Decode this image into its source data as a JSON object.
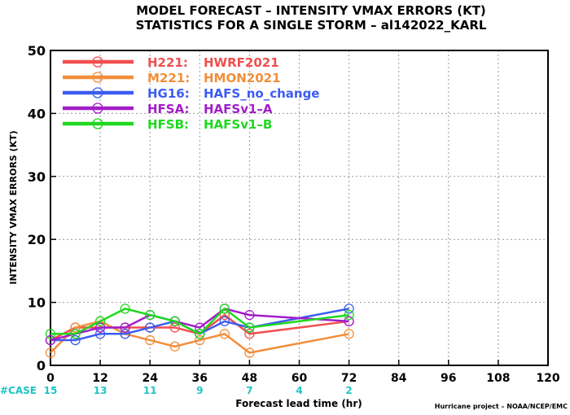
{
  "chart_data": {
    "type": "line",
    "title": "MODEL FORECAST – INTENSITY VMAX ERRORS (KT)",
    "subtitle": "STATISTICS FOR A SINGLE STORM – al142022_KARL",
    "xlabel": "Forecast lead time (hr)",
    "ylabel": "INTENSITY VMAX ERRORS (KT)",
    "xlim": [
      0,
      120
    ],
    "ylim": [
      0,
      50
    ],
    "xticks": [
      0,
      12,
      24,
      36,
      48,
      60,
      72,
      84,
      96,
      108,
      120
    ],
    "yticks": [
      0,
      10,
      20,
      30,
      40,
      50
    ],
    "grid": true,
    "legend_position": "top-left",
    "case_label": "#CASE",
    "cases": [
      {
        "x": 0,
        "n": "15"
      },
      {
        "x": 12,
        "n": "13"
      },
      {
        "x": 24,
        "n": "11"
      },
      {
        "x": 36,
        "n": "9"
      },
      {
        "x": 48,
        "n": "7"
      },
      {
        "x": 60,
        "n": "4"
      },
      {
        "x": 72,
        "n": "2"
      }
    ],
    "credit": "Hurricane project – NOAA/NCEP/EMC",
    "series": [
      {
        "name": "H221:",
        "label": "HWRF2021",
        "color": "#f24e4e",
        "x": [
          0,
          6,
          12,
          18,
          24,
          30,
          36,
          42,
          48,
          72
        ],
        "y": [
          4,
          6,
          6,
          6,
          6,
          6,
          5,
          8,
          5,
          7
        ]
      },
      {
        "name": "M221:",
        "label": "HMON2021",
        "color": "#f28e3a",
        "x": [
          0,
          6,
          12,
          18,
          24,
          30,
          36,
          42,
          48,
          72
        ],
        "y": [
          2,
          6,
          7,
          5,
          4,
          3,
          4,
          5,
          2,
          5
        ]
      },
      {
        "name": "HG16:",
        "label": "HAFS_no_change",
        "color": "#3b5cf2",
        "x": [
          0,
          6,
          12,
          18,
          24,
          30,
          36,
          42,
          48,
          72
        ],
        "y": [
          4,
          4,
          5,
          5,
          6,
          7,
          5,
          7,
          6,
          9
        ]
      },
      {
        "name": "HFSA:",
        "label": "HAFSv1–A",
        "color": "#a31dc9",
        "x": [
          0,
          6,
          12,
          18,
          24,
          30,
          36,
          42,
          48,
          72
        ],
        "y": [
          4,
          5,
          6,
          6,
          8,
          7,
          6,
          9,
          8,
          7
        ]
      },
      {
        "name": "HFSB:",
        "label": "HAFSv1–B",
        "color": "#1fd81f",
        "x": [
          0,
          6,
          12,
          18,
          24,
          30,
          36,
          42,
          48,
          72
        ],
        "y": [
          5,
          5,
          7,
          9,
          8,
          7,
          5,
          9,
          6,
          8
        ]
      }
    ]
  }
}
